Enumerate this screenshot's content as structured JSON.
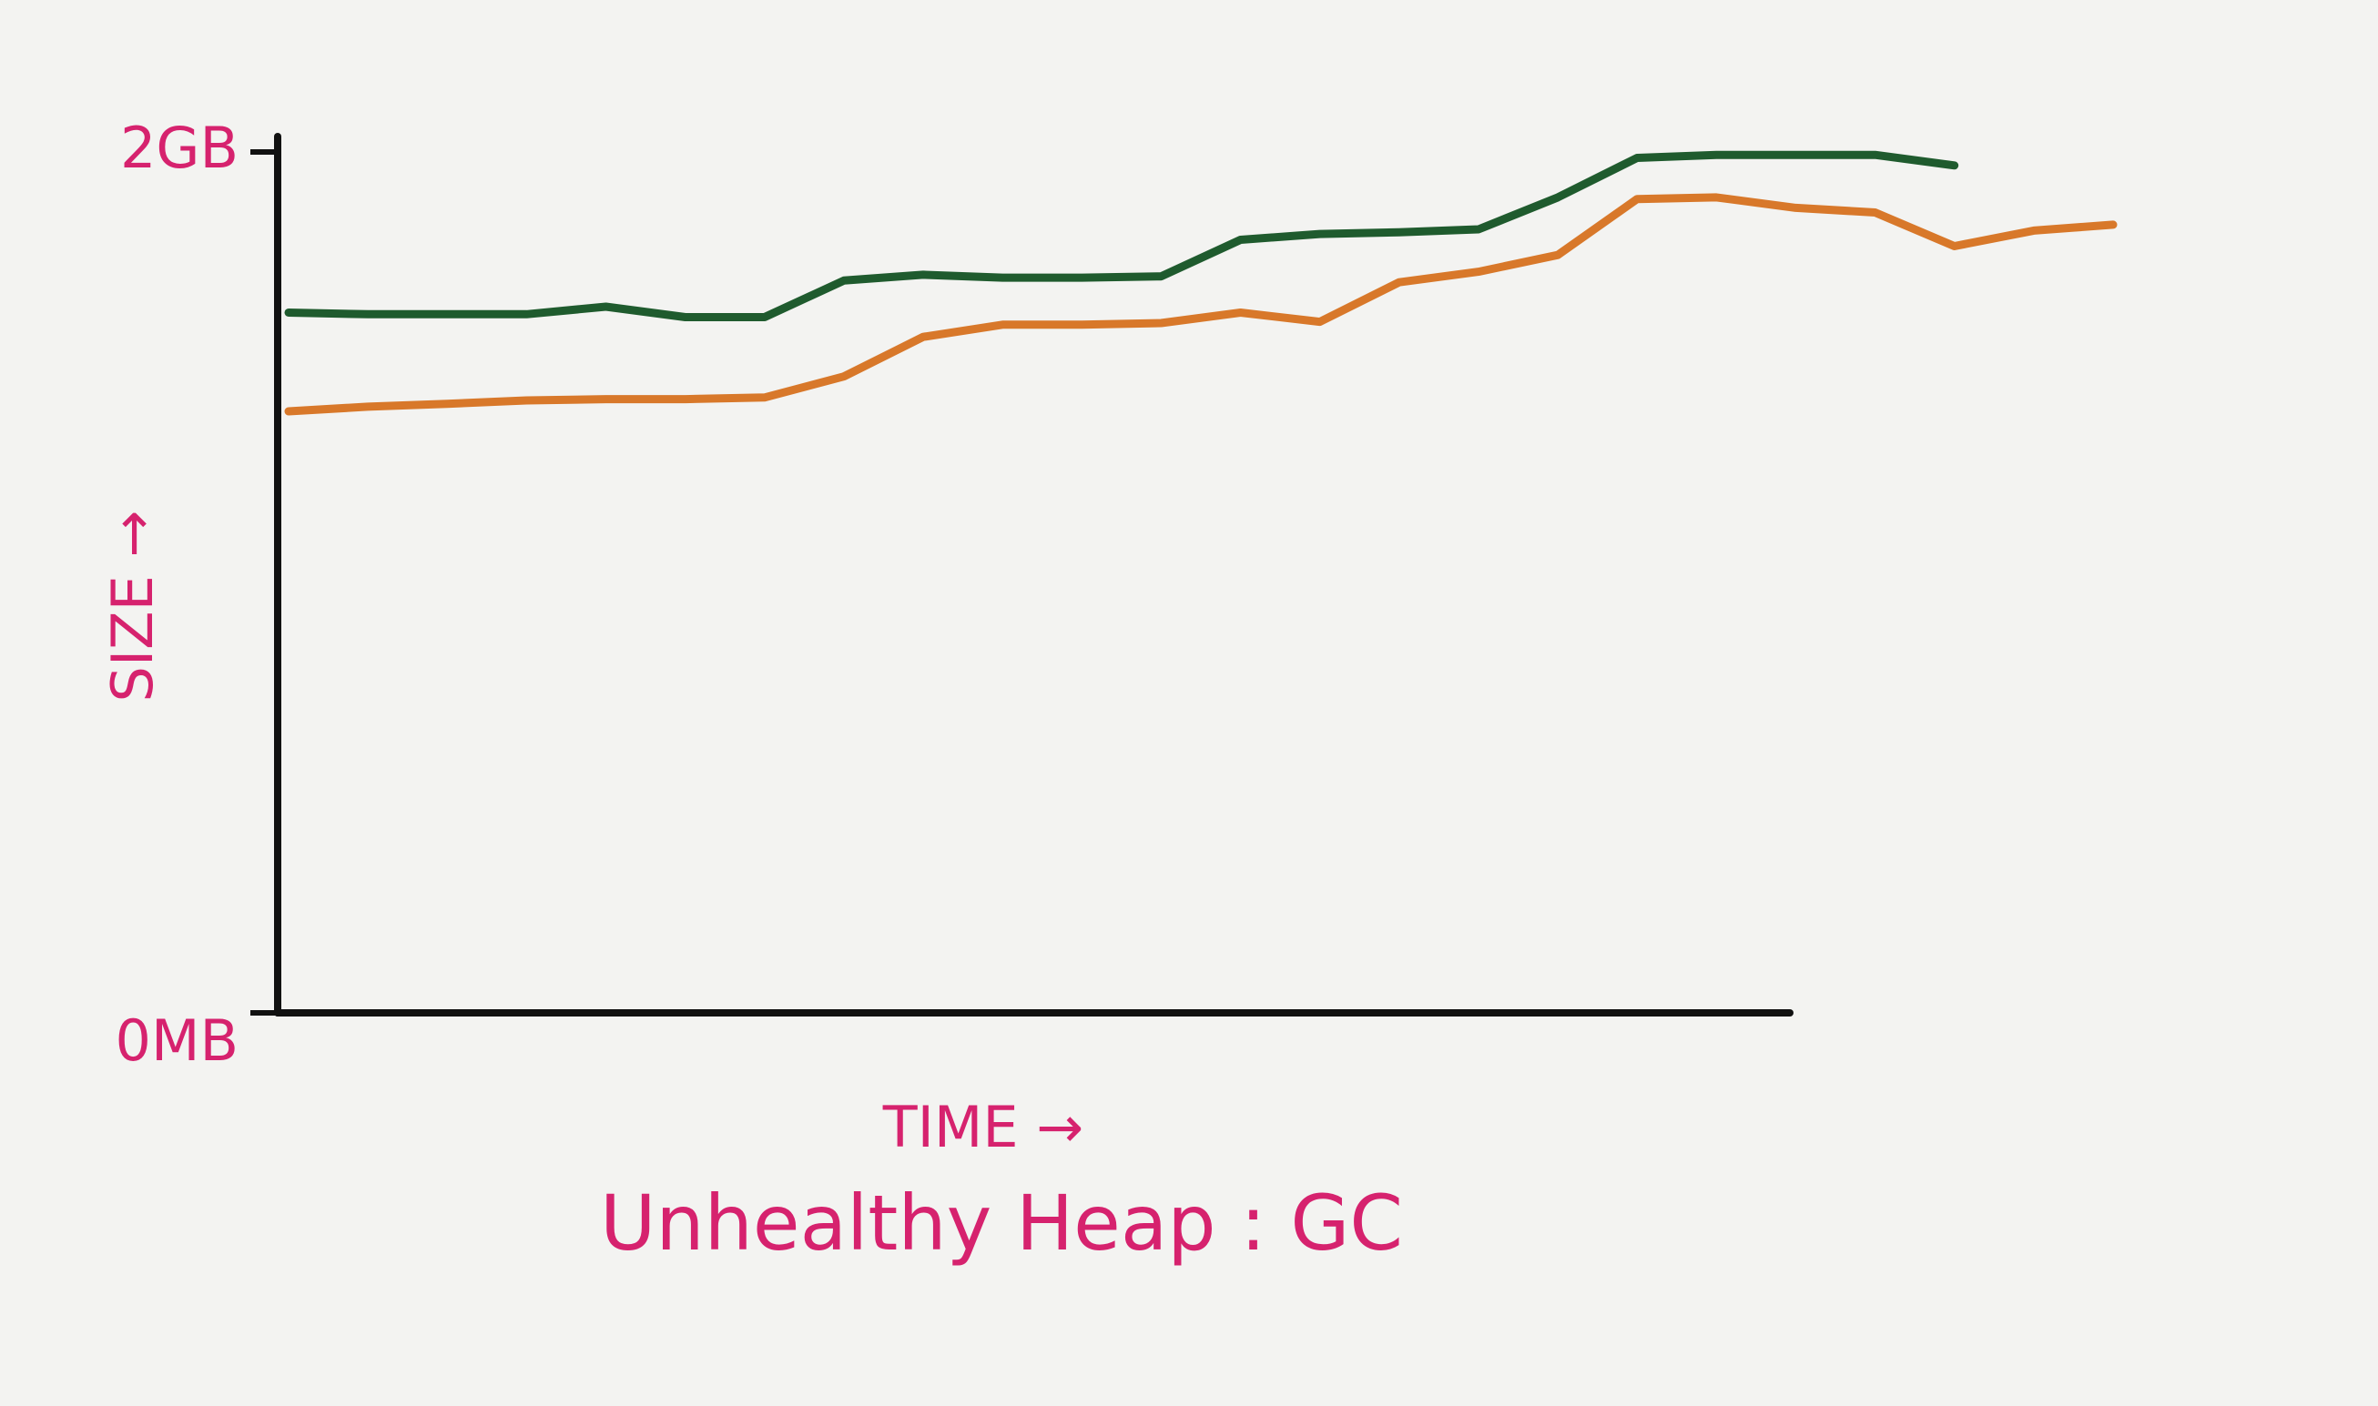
{
  "chart_data": {
    "type": "line",
    "title": "Unhealthy Heap : GC",
    "x_label": "TIME →",
    "y_label": "SIZE →",
    "categories": [
      null,
      null,
      null,
      null,
      null,
      null,
      null,
      null,
      null,
      null,
      null,
      null,
      null,
      null,
      null,
      null,
      null,
      null,
      null,
      null,
      null,
      null,
      null,
      null
    ],
    "series": [
      {
        "color": "#1f5b2e",
        "values": [
          1666,
          1662,
          1662,
          1662,
          1680,
          1655,
          1655,
          1742,
          1756,
          1749,
          1749,
          1752,
          1839,
          1853,
          1857,
          1864,
          1940,
          2034,
          2041,
          2041,
          2041,
          2016,
          null,
          null
        ]
      },
      {
        "color": "#d8782a",
        "values": [
          1431,
          1442,
          1449,
          1457,
          1460,
          1460,
          1464,
          1514,
          1608,
          1637,
          1637,
          1641,
          1666,
          1644,
          1738,
          1763,
          1803,
          1936,
          1940,
          1915,
          1904,
          1824,
          1861,
          1875
        ]
      }
    ],
    "ylim": [
      0,
      2048
    ],
    "yticks": [
      {
        "value": 0,
        "label": "0MB"
      },
      {
        "value": 2048,
        "label": "2GB"
      }
    ]
  }
}
